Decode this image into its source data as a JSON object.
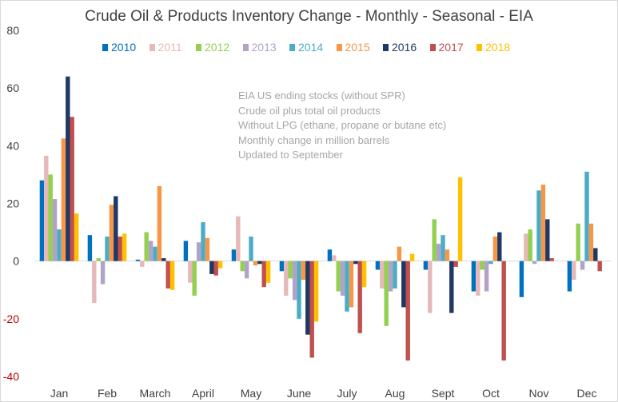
{
  "chart_data": {
    "type": "bar",
    "title": "Crude Oil & Products Inventory Change - Monthly - Seasonal - EIA",
    "xlabel": "",
    "ylabel": "",
    "ylim": [
      -40,
      80
    ],
    "yticks": [
      "80",
      "60",
      "40",
      "20",
      "0",
      "-20",
      "-40"
    ],
    "grid": false,
    "legend_position": "top",
    "categories": [
      "Jan",
      "Feb",
      "March",
      "April",
      "May",
      "June",
      "July",
      "Aug",
      "Sept",
      "Oct",
      "Nov",
      "Dec"
    ],
    "series": [
      {
        "name": "2010",
        "color": "#0070c0",
        "values": [
          28,
          9,
          0.5,
          7,
          4,
          -3.5,
          4,
          -3,
          -3,
          -10.5,
          -12.5,
          -10.5
        ]
      },
      {
        "name": "2011",
        "color": "#e6b9b8",
        "values": [
          36.5,
          -14.5,
          -2,
          -7.5,
          15.5,
          -12,
          2,
          -9.5,
          -18,
          -12,
          9.5,
          -6.5
        ]
      },
      {
        "name": "2012",
        "color": "#92d050",
        "values": [
          30,
          1,
          10,
          -12,
          -3.5,
          -6,
          -10.5,
          -22.5,
          14.5,
          -3,
          11,
          13
        ]
      },
      {
        "name": "2013",
        "color": "#b3a2c7",
        "values": [
          21.5,
          -8,
          7,
          6.5,
          -6,
          -13.5,
          -12,
          -10.5,
          6,
          -10.5,
          -1,
          -3
        ]
      },
      {
        "name": "2014",
        "color": "#4bacc6",
        "values": [
          11,
          8.5,
          5,
          13.5,
          8.5,
          -20,
          -17.5,
          -9.5,
          9,
          -1,
          24.5,
          31
        ]
      },
      {
        "name": "2015",
        "color": "#f79646",
        "values": [
          42.5,
          19.5,
          26,
          8,
          -1.5,
          -6.5,
          -16,
          5,
          4,
          8.5,
          26.5,
          13
        ]
      },
      {
        "name": "2016",
        "color": "#1f3864",
        "values": [
          64,
          22.5,
          1,
          -4.5,
          -1,
          -25.5,
          -1,
          -16,
          -18,
          10,
          14.5,
          4.5
        ]
      },
      {
        "name": "2017",
        "color": "#c0504d",
        "values": [
          50,
          8.5,
          -9.5,
          -5,
          -9,
          -33.5,
          -25,
          -34.5,
          -2,
          -34.5,
          1,
          -3.5
        ]
      },
      {
        "name": "2018",
        "color": "#ffc000",
        "values": [
          16.5,
          9.5,
          -10,
          -2.5,
          -7.5,
          -21,
          -9,
          2.5,
          29,
          null,
          null,
          null
        ]
      }
    ],
    "annotation": [
      "EIA US ending stocks (without SPR)",
      "Crude oil plus total oil products",
      "Without LPG (ethane, propane or butane etc)",
      "Monthly change in million barrels",
      "Updated to September"
    ],
    "colors": {
      "axis_label": "#404040",
      "negative_tick": "#c00000",
      "annotation": "#a6a6a6",
      "zero_line": "#d9d9d9"
    }
  }
}
